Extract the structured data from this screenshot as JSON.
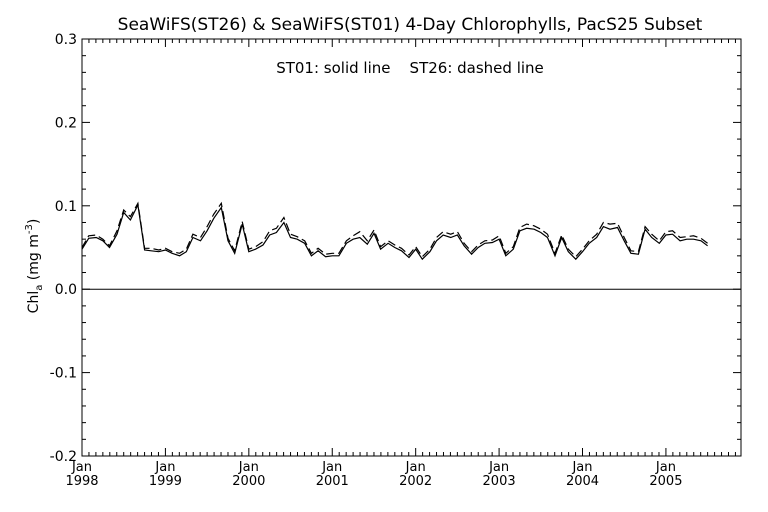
{
  "chart_data": {
    "type": "line",
    "title": "SeaWiFS(ST26) & SeaWiFS(ST01) 4-Day Chlorophylls, PacS25 Subset",
    "annotation": "ST01: solid line    ST26: dashed line",
    "ylabel": {
      "main": "Chl",
      "subscript": "a",
      "unit_open": " (mg m",
      "unit_exp": "-3",
      "unit_close": ")"
    },
    "ylim": [
      -0.2,
      0.3
    ],
    "y_ticks": [
      -0.2,
      -0.1,
      0.0,
      0.1,
      0.2,
      0.3
    ],
    "y_tick_labels": [
      "-0.2",
      "-0.1",
      "0.0",
      "0.1",
      "0.2",
      "0.3"
    ],
    "xlim": [
      1998.0,
      2005.9
    ],
    "x_ticks": [
      1998,
      1999,
      2000,
      2001,
      2002,
      2003,
      2004,
      2005
    ],
    "x_tick_labels": [
      {
        "month": "Jan",
        "year": "1998"
      },
      {
        "month": "Jan",
        "year": "1999"
      },
      {
        "month": "Jan",
        "year": "2000"
      },
      {
        "month": "Jan",
        "year": "2001"
      },
      {
        "month": "Jan",
        "year": "2002"
      },
      {
        "month": "Jan",
        "year": "2003"
      },
      {
        "month": "Jan",
        "year": "2004"
      },
      {
        "month": "Jan",
        "year": "2005"
      }
    ],
    "zero_line": 0.0,
    "series": [
      {
        "name": "ST01",
        "style": "solid",
        "points": [
          [
            1998.0,
            0.048
          ],
          [
            1998.08,
            0.061
          ],
          [
            1998.17,
            0.062
          ],
          [
            1998.25,
            0.058
          ],
          [
            1998.33,
            0.05
          ],
          [
            1998.42,
            0.066
          ],
          [
            1998.5,
            0.092
          ],
          [
            1998.58,
            0.083
          ],
          [
            1998.67,
            0.101
          ],
          [
            1998.75,
            0.047
          ],
          [
            1998.83,
            0.046
          ],
          [
            1998.92,
            0.045
          ],
          [
            1999.0,
            0.047
          ],
          [
            1999.08,
            0.043
          ],
          [
            1999.17,
            0.04
          ],
          [
            1999.25,
            0.045
          ],
          [
            1999.33,
            0.062
          ],
          [
            1999.42,
            0.058
          ],
          [
            1999.5,
            0.07
          ],
          [
            1999.58,
            0.085
          ],
          [
            1999.67,
            0.098
          ],
          [
            1999.75,
            0.058
          ],
          [
            1999.83,
            0.043
          ],
          [
            1999.92,
            0.078
          ],
          [
            2000.0,
            0.045
          ],
          [
            2000.08,
            0.048
          ],
          [
            2000.17,
            0.053
          ],
          [
            2000.25,
            0.065
          ],
          [
            2000.33,
            0.068
          ],
          [
            2000.42,
            0.08
          ],
          [
            2000.5,
            0.062
          ],
          [
            2000.58,
            0.06
          ],
          [
            2000.67,
            0.055
          ],
          [
            2000.75,
            0.04
          ],
          [
            2000.83,
            0.046
          ],
          [
            2000.92,
            0.039
          ],
          [
            2001.0,
            0.04
          ],
          [
            2001.08,
            0.04
          ],
          [
            2001.17,
            0.055
          ],
          [
            2001.25,
            0.06
          ],
          [
            2001.33,
            0.062
          ],
          [
            2001.42,
            0.054
          ],
          [
            2001.5,
            0.067
          ],
          [
            2001.58,
            0.048
          ],
          [
            2001.67,
            0.055
          ],
          [
            2001.75,
            0.05
          ],
          [
            2001.83,
            0.046
          ],
          [
            2001.92,
            0.038
          ],
          [
            2002.0,
            0.048
          ],
          [
            2002.08,
            0.036
          ],
          [
            2002.17,
            0.045
          ],
          [
            2002.25,
            0.058
          ],
          [
            2002.33,
            0.065
          ],
          [
            2002.42,
            0.062
          ],
          [
            2002.5,
            0.065
          ],
          [
            2002.58,
            0.052
          ],
          [
            2002.67,
            0.042
          ],
          [
            2002.75,
            0.05
          ],
          [
            2002.83,
            0.055
          ],
          [
            2002.92,
            0.056
          ],
          [
            2003.0,
            0.06
          ],
          [
            2003.08,
            0.04
          ],
          [
            2003.17,
            0.048
          ],
          [
            2003.25,
            0.07
          ],
          [
            2003.33,
            0.073
          ],
          [
            2003.42,
            0.072
          ],
          [
            2003.5,
            0.068
          ],
          [
            2003.58,
            0.062
          ],
          [
            2003.67,
            0.04
          ],
          [
            2003.75,
            0.062
          ],
          [
            2003.83,
            0.045
          ],
          [
            2003.92,
            0.036
          ],
          [
            2004.0,
            0.045
          ],
          [
            2004.08,
            0.055
          ],
          [
            2004.17,
            0.062
          ],
          [
            2004.25,
            0.075
          ],
          [
            2004.33,
            0.072
          ],
          [
            2004.42,
            0.074
          ],
          [
            2004.5,
            0.058
          ],
          [
            2004.58,
            0.043
          ],
          [
            2004.67,
            0.042
          ],
          [
            2004.75,
            0.072
          ],
          [
            2004.83,
            0.062
          ],
          [
            2004.92,
            0.055
          ],
          [
            2005.0,
            0.065
          ],
          [
            2005.08,
            0.066
          ],
          [
            2005.17,
            0.058
          ],
          [
            2005.25,
            0.06
          ],
          [
            2005.33,
            0.06
          ],
          [
            2005.42,
            0.058
          ],
          [
            2005.5,
            0.052
          ]
        ]
      },
      {
        "name": "ST26",
        "style": "dashed",
        "points": [
          [
            1998.0,
            0.05
          ],
          [
            1998.08,
            0.064
          ],
          [
            1998.17,
            0.065
          ],
          [
            1998.25,
            0.06
          ],
          [
            1998.33,
            0.052
          ],
          [
            1998.42,
            0.07
          ],
          [
            1998.5,
            0.095
          ],
          [
            1998.58,
            0.087
          ],
          [
            1998.67,
            0.103
          ],
          [
            1998.75,
            0.049
          ],
          [
            1998.83,
            0.049
          ],
          [
            1998.92,
            0.047
          ],
          [
            1999.0,
            0.049
          ],
          [
            1999.08,
            0.045
          ],
          [
            1999.17,
            0.043
          ],
          [
            1999.25,
            0.048
          ],
          [
            1999.33,
            0.066
          ],
          [
            1999.42,
            0.062
          ],
          [
            1999.5,
            0.075
          ],
          [
            1999.58,
            0.09
          ],
          [
            1999.67,
            0.103
          ],
          [
            1999.75,
            0.061
          ],
          [
            1999.83,
            0.046
          ],
          [
            1999.92,
            0.081
          ],
          [
            2000.0,
            0.048
          ],
          [
            2000.08,
            0.051
          ],
          [
            2000.17,
            0.057
          ],
          [
            2000.25,
            0.07
          ],
          [
            2000.33,
            0.073
          ],
          [
            2000.42,
            0.086
          ],
          [
            2000.5,
            0.066
          ],
          [
            2000.58,
            0.063
          ],
          [
            2000.67,
            0.058
          ],
          [
            2000.75,
            0.043
          ],
          [
            2000.83,
            0.049
          ],
          [
            2000.92,
            0.042
          ],
          [
            2001.0,
            0.043
          ],
          [
            2001.08,
            0.043
          ],
          [
            2001.17,
            0.058
          ],
          [
            2001.25,
            0.064
          ],
          [
            2001.33,
            0.069
          ],
          [
            2001.42,
            0.058
          ],
          [
            2001.5,
            0.071
          ],
          [
            2001.58,
            0.051
          ],
          [
            2001.67,
            0.058
          ],
          [
            2001.75,
            0.053
          ],
          [
            2001.83,
            0.049
          ],
          [
            2001.92,
            0.041
          ],
          [
            2002.0,
            0.051
          ],
          [
            2002.08,
            0.039
          ],
          [
            2002.17,
            0.048
          ],
          [
            2002.25,
            0.062
          ],
          [
            2002.33,
            0.069
          ],
          [
            2002.42,
            0.066
          ],
          [
            2002.5,
            0.069
          ],
          [
            2002.58,
            0.055
          ],
          [
            2002.67,
            0.045
          ],
          [
            2002.75,
            0.053
          ],
          [
            2002.83,
            0.058
          ],
          [
            2002.92,
            0.059
          ],
          [
            2003.0,
            0.064
          ],
          [
            2003.08,
            0.043
          ],
          [
            2003.17,
            0.051
          ],
          [
            2003.25,
            0.074
          ],
          [
            2003.33,
            0.078
          ],
          [
            2003.42,
            0.076
          ],
          [
            2003.5,
            0.072
          ],
          [
            2003.58,
            0.066
          ],
          [
            2003.67,
            0.043
          ],
          [
            2003.75,
            0.065
          ],
          [
            2003.83,
            0.048
          ],
          [
            2003.92,
            0.039
          ],
          [
            2004.0,
            0.048
          ],
          [
            2004.08,
            0.058
          ],
          [
            2004.17,
            0.066
          ],
          [
            2004.25,
            0.08
          ],
          [
            2004.33,
            0.078
          ],
          [
            2004.42,
            0.079
          ],
          [
            2004.5,
            0.062
          ],
          [
            2004.58,
            0.046
          ],
          [
            2004.67,
            0.045
          ],
          [
            2004.75,
            0.075
          ],
          [
            2004.83,
            0.066
          ],
          [
            2004.92,
            0.058
          ],
          [
            2005.0,
            0.069
          ],
          [
            2005.08,
            0.07
          ],
          [
            2005.17,
            0.062
          ],
          [
            2005.25,
            0.063
          ],
          [
            2005.33,
            0.064
          ],
          [
            2005.42,
            0.061
          ],
          [
            2005.5,
            0.055
          ]
        ]
      }
    ],
    "colors": {
      "line": "#000000",
      "background": "#ffffff"
    }
  }
}
